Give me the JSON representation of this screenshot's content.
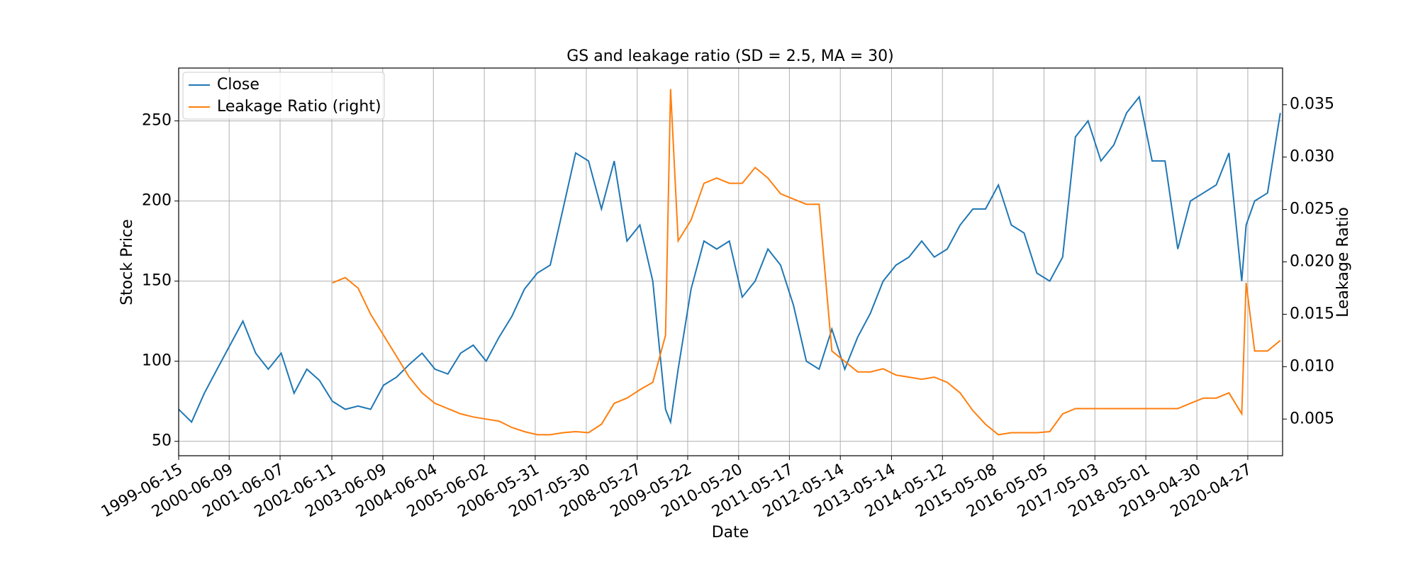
{
  "chart_data": {
    "type": "line",
    "title": "GS and leakage ratio (SD = 2.5, MA = 30)",
    "x_label": "Date",
    "y_label": "Stock Price",
    "y2_label": "Leakage Ratio",
    "grid": true,
    "legend": "upper left",
    "x": [
      "1999-06-15",
      "1999-09-15",
      "1999-12-15",
      "2000-03-15",
      "2000-06-15",
      "2000-09-15",
      "2000-12-15",
      "2001-03-15",
      "2001-06-15",
      "2001-09-15",
      "2001-12-15",
      "2002-03-15",
      "2002-06-15",
      "2002-09-15",
      "2002-12-15",
      "2003-03-15",
      "2003-06-15",
      "2003-09-15",
      "2003-12-15",
      "2004-03-15",
      "2004-06-15",
      "2004-09-15",
      "2004-12-15",
      "2005-03-15",
      "2005-06-15",
      "2005-09-15",
      "2005-12-15",
      "2006-03-15",
      "2006-06-15",
      "2006-09-15",
      "2006-12-15",
      "2007-03-15",
      "2007-06-15",
      "2007-09-15",
      "2007-12-15",
      "2008-03-15",
      "2008-06-15",
      "2008-09-15",
      "2008-12-15",
      "2009-01-20",
      "2009-03-15",
      "2009-06-15",
      "2009-09-15",
      "2009-12-15",
      "2010-03-15",
      "2010-06-15",
      "2010-09-15",
      "2010-12-15",
      "2011-03-15",
      "2011-06-15",
      "2011-09-15",
      "2011-12-15",
      "2012-03-15",
      "2012-06-15",
      "2012-09-15",
      "2012-12-15",
      "2013-03-15",
      "2013-06-15",
      "2013-09-15",
      "2013-12-15",
      "2014-03-15",
      "2014-06-15",
      "2014-09-15",
      "2014-12-15",
      "2015-03-15",
      "2015-06-15",
      "2015-09-15",
      "2015-12-15",
      "2016-03-15",
      "2016-06-15",
      "2016-09-15",
      "2016-12-15",
      "2017-03-15",
      "2017-06-15",
      "2017-09-15",
      "2017-12-15",
      "2018-03-15",
      "2018-06-15",
      "2018-09-15",
      "2018-12-15",
      "2019-03-15",
      "2019-06-15",
      "2019-09-15",
      "2019-12-15",
      "2020-03-15",
      "2020-04-15",
      "2020-06-15",
      "2020-09-15",
      "2020-12-15"
    ],
    "series": [
      {
        "name": "Close",
        "color": "#1f77b4",
        "values": [
          70,
          62,
          80,
          95,
          110,
          125,
          105,
          95,
          105,
          80,
          95,
          88,
          75,
          70,
          72,
          70,
          85,
          90,
          98,
          105,
          95,
          92,
          105,
          110,
          100,
          115,
          128,
          145,
          155,
          160,
          195,
          230,
          225,
          195,
          225,
          175,
          185,
          150,
          70,
          62,
          95,
          145,
          175,
          170,
          175,
          140,
          150,
          170,
          160,
          135,
          100,
          95,
          120,
          95,
          115,
          130,
          150,
          160,
          165,
          175,
          165,
          170,
          185,
          195,
          195,
          210,
          185,
          180,
          155,
          150,
          165,
          240,
          250,
          225,
          235,
          255,
          265,
          225,
          225,
          170,
          200,
          205,
          210,
          230,
          150,
          185,
          200,
          205,
          255
        ]
      },
      {
        "name": "Leakage Ratio (right)",
        "color": "#ff7f0e",
        "axis": "y2",
        "values": [
          null,
          null,
          null,
          null,
          null,
          null,
          null,
          null,
          null,
          null,
          null,
          null,
          0.018,
          0.0185,
          0.0175,
          0.015,
          0.013,
          0.011,
          0.009,
          0.0075,
          0.0065,
          0.006,
          0.0055,
          0.0052,
          0.005,
          0.0048,
          0.0042,
          0.0038,
          0.0035,
          0.0035,
          0.0037,
          0.0038,
          0.0037,
          0.0045,
          0.0065,
          0.007,
          0.0078,
          0.0085,
          0.013,
          0.0365,
          0.022,
          0.024,
          0.0275,
          0.028,
          0.0275,
          0.0275,
          0.029,
          0.028,
          0.0265,
          0.026,
          0.0255,
          0.0255,
          0.0115,
          0.0105,
          0.0095,
          0.0095,
          0.0098,
          0.0092,
          0.009,
          0.0088,
          0.009,
          0.0085,
          0.0075,
          0.0058,
          0.0045,
          0.0035,
          0.0037,
          0.0037,
          0.0037,
          0.0038,
          0.0055,
          0.006,
          0.006,
          0.006,
          0.006,
          0.006,
          0.006,
          0.006,
          0.006,
          0.006,
          0.0065,
          0.007,
          0.007,
          0.0075,
          0.0055,
          0.018,
          0.0115,
          0.0115,
          0.0125
        ]
      }
    ],
    "xlim": [
      "1999-06-15",
      "2020-12-31"
    ],
    "xticks": [
      "1999-06-15",
      "2000-06-09",
      "2001-06-07",
      "2002-06-11",
      "2003-06-09",
      "2004-06-04",
      "2005-06-02",
      "2006-05-31",
      "2007-05-30",
      "2008-05-27",
      "2009-05-22",
      "2010-05-20",
      "2011-05-17",
      "2012-05-14",
      "2013-05-14",
      "2014-05-12",
      "2015-05-08",
      "2016-05-05",
      "2017-05-03",
      "2018-05-01",
      "2019-04-30",
      "2020-04-27"
    ],
    "ylim": [
      41,
      283
    ],
    "yticks": [
      50,
      100,
      150,
      200,
      250
    ],
    "y2lim": [
      0.0015,
      0.0385
    ],
    "y2ticks": [
      0.005,
      {
        "value": 0.01,
        "label": "0.010"
      },
      0.015,
      {
        "value": 0.02,
        "label": "0.020"
      },
      0.025,
      {
        "value": 0.03,
        "label": "0.030"
      },
      0.035
    ]
  }
}
